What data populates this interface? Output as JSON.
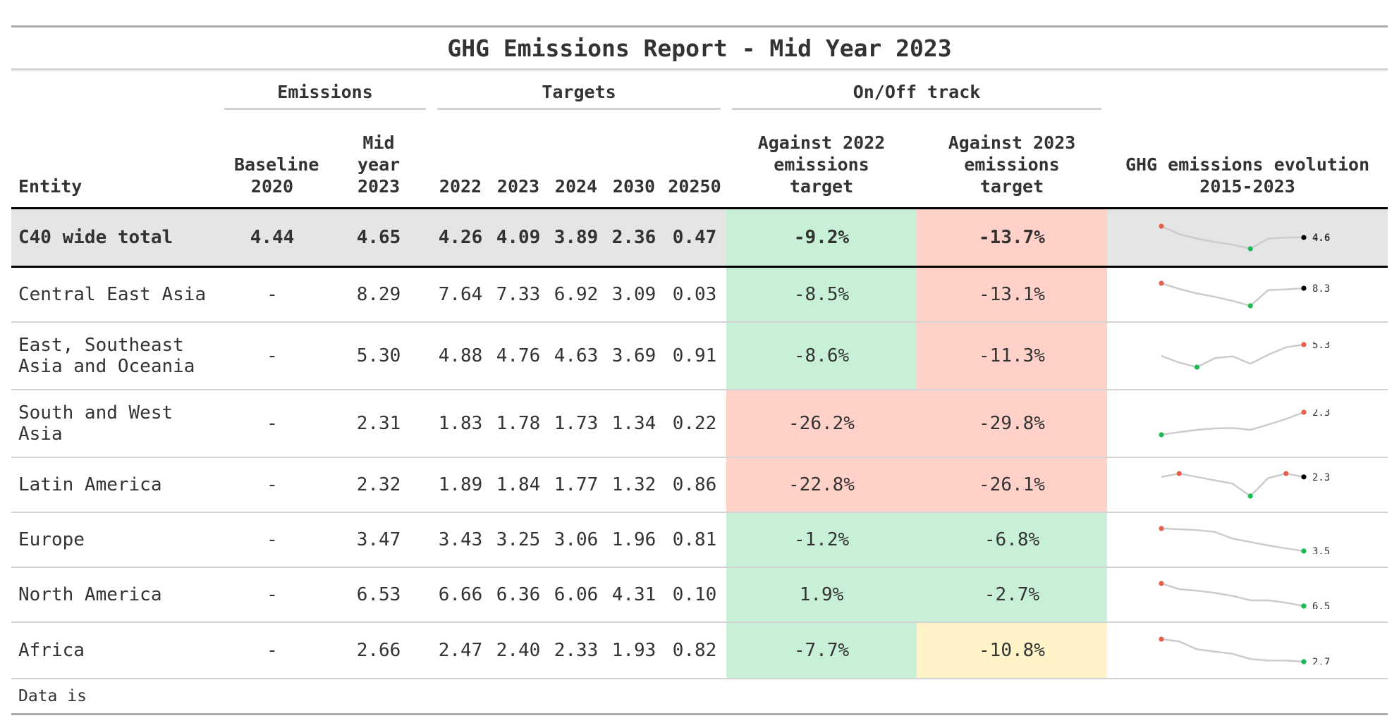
{
  "title": "GHG Emissions Report - Mid Year 2023",
  "spanners": {
    "emissions": "Emissions",
    "targets": "Targets",
    "track": "On/Off track"
  },
  "columns": {
    "entity": "Entity",
    "baseline": "Baseline 2020",
    "mid": "Mid year 2023",
    "t2022": "2022",
    "t2023": "2023",
    "t2024": "2024",
    "t2030": "2030",
    "t2050": "20250",
    "against2022": "Against 2022 emissions target",
    "against2023": "Against 2023 emissions target",
    "evolution": "GHG emissions evolution 2015-2023"
  },
  "rows": [
    {
      "entity": "C40 wide total",
      "baseline": "4.44",
      "mid": "4.65",
      "t2022": "4.26",
      "t2023": "4.09",
      "t2024": "3.89",
      "t2030": "2.36",
      "t2050": "0.47",
      "against2022": "-9.2%",
      "against2023": "-13.7%",
      "status2022": "green",
      "status2023": "red",
      "spark": [
        0.0,
        0.35,
        0.55,
        0.7,
        0.82,
        1.0,
        0.55,
        0.5,
        0.5
      ],
      "spark_label": "4.6",
      "spark_max": 0,
      "spark_min": 5,
      "spark_end_color": "#000000"
    },
    {
      "entity": "Central East Asia",
      "baseline": "-",
      "mid": "8.29",
      "t2022": "7.64",
      "t2023": "7.33",
      "t2024": "6.92",
      "t2030": "3.09",
      "t2050": "0.03",
      "against2022": "-8.5%",
      "against2023": "-13.1%",
      "status2022": "green",
      "status2023": "red",
      "spark": [
        0.0,
        0.25,
        0.45,
        0.6,
        0.78,
        1.0,
        0.3,
        0.27,
        0.22
      ],
      "spark_label": "8.3",
      "spark_max": 0,
      "spark_min": 5,
      "spark_end_color": "#000000"
    },
    {
      "entity": "East, Southeast Asia and Oceania",
      "baseline": "-",
      "mid": "5.30",
      "t2022": "4.88",
      "t2023": "4.76",
      "t2024": "4.63",
      "t2030": "3.69",
      "t2050": "0.91",
      "against2022": "-8.6%",
      "against2023": "-11.3%",
      "status2022": "green",
      "status2023": "red",
      "spark": [
        0.5,
        0.8,
        1.0,
        0.6,
        0.52,
        0.85,
        0.45,
        0.12,
        0.0
      ],
      "spark_label": "5.3",
      "spark_max": 8,
      "spark_min": 2,
      "spark_end_color": "#e8604c"
    },
    {
      "entity": "South and West Asia",
      "baseline": "-",
      "mid": "2.31",
      "t2022": "1.83",
      "t2023": "1.78",
      "t2024": "1.73",
      "t2030": "1.34",
      "t2050": "0.22",
      "against2022": "-26.2%",
      "against2023": "-29.8%",
      "status2022": "red",
      "status2023": "red",
      "spark": [
        1.0,
        0.88,
        0.78,
        0.72,
        0.7,
        0.78,
        0.55,
        0.3,
        0.0
      ],
      "spark_label": "2.3",
      "spark_max": 8,
      "spark_min": 0,
      "spark_end_color": "#e8604c"
    },
    {
      "entity": "Latin America",
      "baseline": "-",
      "mid": "2.32",
      "t2022": "1.89",
      "t2023": "1.84",
      "t2024": "1.77",
      "t2030": "1.32",
      "t2050": "0.86",
      "against2022": "-22.8%",
      "against2023": "-26.1%",
      "status2022": "red",
      "status2023": "red",
      "spark": [
        0.15,
        0.0,
        0.15,
        0.3,
        0.45,
        1.0,
        0.2,
        0.0,
        0.15
      ],
      "spark_label": "2.3",
      "spark_max": 1,
      "spark_min": 5,
      "spark_max2": 7,
      "spark_end_color": "#000000"
    },
    {
      "entity": "Europe",
      "baseline": "-",
      "mid": "3.47",
      "t2022": "3.43",
      "t2023": "3.25",
      "t2024": "3.06",
      "t2030": "1.96",
      "t2050": "0.81",
      "against2022": "-1.2%",
      "against2023": "-6.8%",
      "status2022": "green",
      "status2023": "green",
      "spark": [
        0.0,
        0.03,
        0.07,
        0.15,
        0.45,
        0.6,
        0.75,
        0.88,
        1.0
      ],
      "spark_label": "3.5",
      "spark_max": 0,
      "spark_min": 8,
      "spark_end_color": "#1db954"
    },
    {
      "entity": "North America",
      "baseline": "-",
      "mid": "6.53",
      "t2022": "6.66",
      "t2023": "6.36",
      "t2024": "6.06",
      "t2030": "4.31",
      "t2050": "0.10",
      "against2022": "1.9%",
      "against2023": "-2.7%",
      "status2022": "green",
      "status2023": "green",
      "spark": [
        0.0,
        0.25,
        0.32,
        0.42,
        0.55,
        0.75,
        0.75,
        0.85,
        1.0
      ],
      "spark_label": "6.5",
      "spark_max": 0,
      "spark_min": 8,
      "spark_end_color": "#1db954"
    },
    {
      "entity": "Africa",
      "baseline": "-",
      "mid": "2.66",
      "t2022": "2.47",
      "t2023": "2.40",
      "t2024": "2.33",
      "t2030": "1.93",
      "t2050": "0.82",
      "against2022": "-7.7%",
      "against2023": "-10.8%",
      "status2022": "green",
      "status2023": "yellow",
      "spark": [
        0.0,
        0.1,
        0.45,
        0.55,
        0.65,
        0.88,
        0.95,
        0.95,
        1.0
      ],
      "spark_label": "2.7",
      "spark_max": 0,
      "spark_min": 8,
      "spark_end_color": "#1db954"
    }
  ],
  "footnote": "Data is",
  "colors": {
    "green": "#c8f0d6",
    "red": "#ffd1c9",
    "yellow": "#fff3c7",
    "line": "#cccccc",
    "max_dot": "#e8604c",
    "min_dot": "#1db954"
  }
}
